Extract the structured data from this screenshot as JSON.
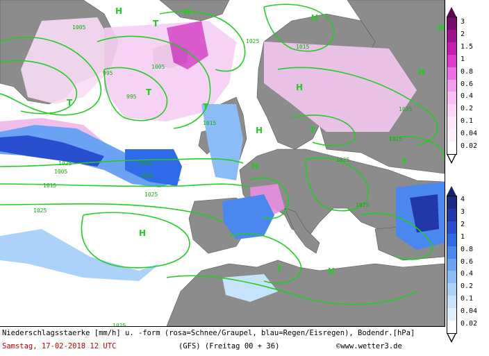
{
  "caption": {
    "line1": "Niederschlagsstaerke [mm/h] u. -form (rosa=Schnee/Graupel, blau=Regen/Eisregen), Bodendr.[hPa]",
    "date": "Samstag, 17-02-2018  12 UTC",
    "model": "(GFS)  (Freitag 00 + 36)",
    "credit": "©www.wetter3.de"
  },
  "legend_snow": {
    "labels": [
      "3",
      "2",
      "1.5",
      "1",
      "0.8",
      "0.6",
      "0.4",
      "0.2",
      "0.1",
      "0.04",
      "0.02"
    ],
    "colors": [
      "#7a0a6e",
      "#a0118f",
      "#c41eb0",
      "#de3ccd",
      "#ef6ee3",
      "#f69cee",
      "#fbbff6",
      "#fdd6fa",
      "#fee6fc",
      "#fff0fe",
      "#ffffff"
    ]
  },
  "legend_rain": {
    "labels": [
      "4",
      "3",
      "2",
      "1",
      "0.8",
      "0.6",
      "0.4",
      "0.2",
      "0.1",
      "0.04",
      "0.02"
    ],
    "colors": [
      "#1b2a86",
      "#2338a8",
      "#2a4ed0",
      "#2f6ae8",
      "#4a88f0",
      "#6aa3f3",
      "#8cbcf6",
      "#acd2f9",
      "#c7e3fb",
      "#dff0fd",
      "#ffffff"
    ]
  },
  "map": {
    "isobar_labels": [
      "1005",
      "995",
      "995",
      "1005",
      "1025",
      "1015",
      "1015",
      "1025",
      "1035",
      "1025",
      "1025",
      "1025",
      "1015",
      "1005",
      "1015",
      "1025",
      "1025",
      "1025",
      "1015"
    ],
    "pressure_centers": [
      "H",
      "H",
      "H",
      "T",
      "T",
      "T",
      "T",
      "H",
      "H",
      "H",
      "T",
      "H",
      "H",
      "T",
      "H",
      "H",
      "T"
    ],
    "colors": {
      "sea": "#ffffff",
      "land": "#8c8c8c",
      "isobar": "#22cc22",
      "snow": "#f3c4ef",
      "rain": "#4a7fe0"
    }
  }
}
